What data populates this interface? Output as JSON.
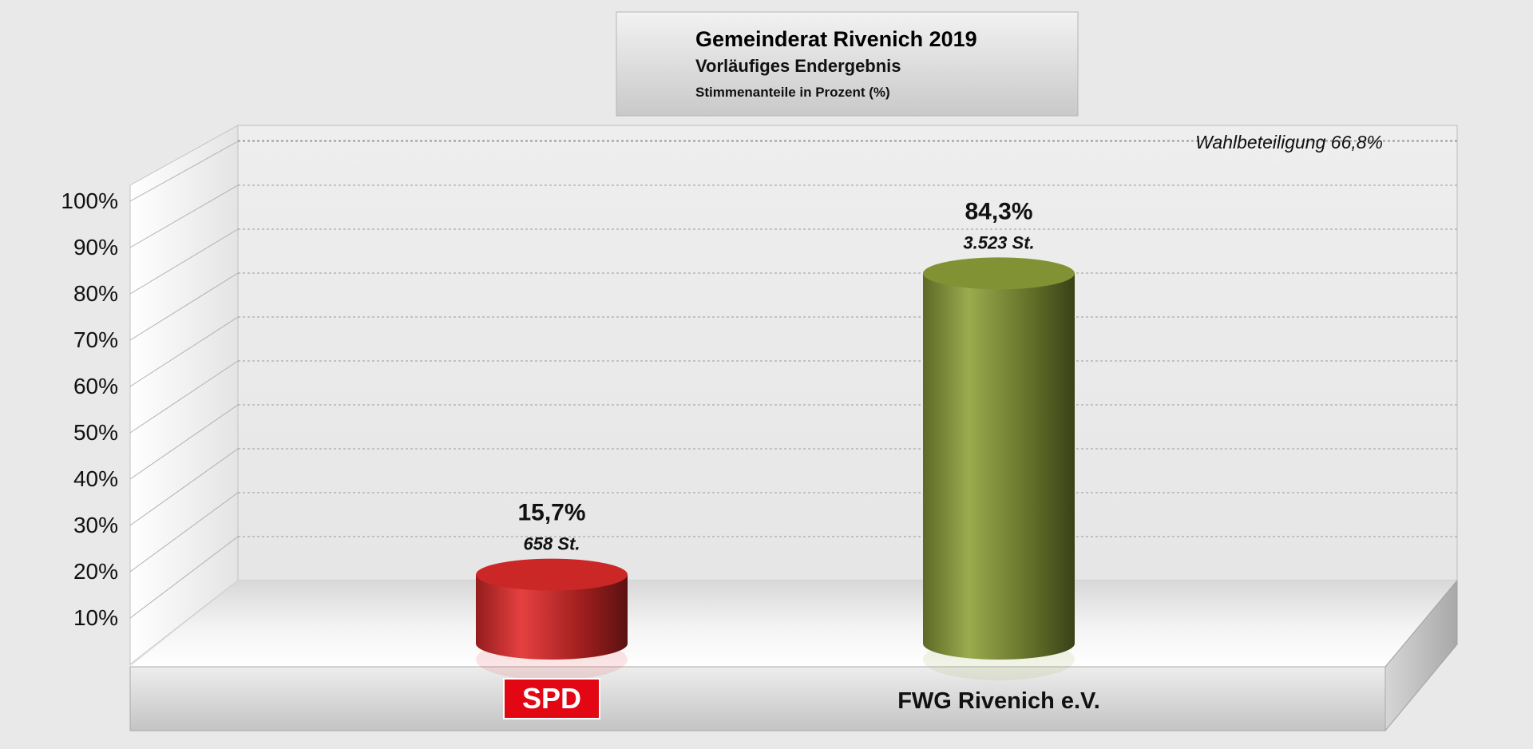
{
  "chart_data": {
    "type": "bar",
    "title": "Gemeinderat Rivenich 2019",
    "subtitle": "Vorläufiges Endergebnis",
    "subtitle2": "Stimmenanteile in Prozent (%)",
    "annotation": "Wahlbeteiligung 66,8%",
    "ylim": [
      0,
      100
    ],
    "ytick_labels": [
      "10%",
      "20%",
      "30%",
      "40%",
      "50%",
      "60%",
      "70%",
      "80%",
      "90%",
      "100%"
    ],
    "ytick_values": [
      10,
      20,
      30,
      40,
      50,
      60,
      70,
      80,
      90,
      100
    ],
    "grid": true,
    "categories": [
      {
        "name": "SPD",
        "logo": "SPD",
        "value": 15.7,
        "value_label": "15,7%",
        "votes_label": "658 St.",
        "color": "#e32b2b"
      },
      {
        "name": "FWG Rivenich e.V.",
        "logo": "",
        "value": 84.3,
        "value_label": "84,3%",
        "votes_label": "3.523 St.",
        "color": "#8fa23a"
      }
    ]
  }
}
